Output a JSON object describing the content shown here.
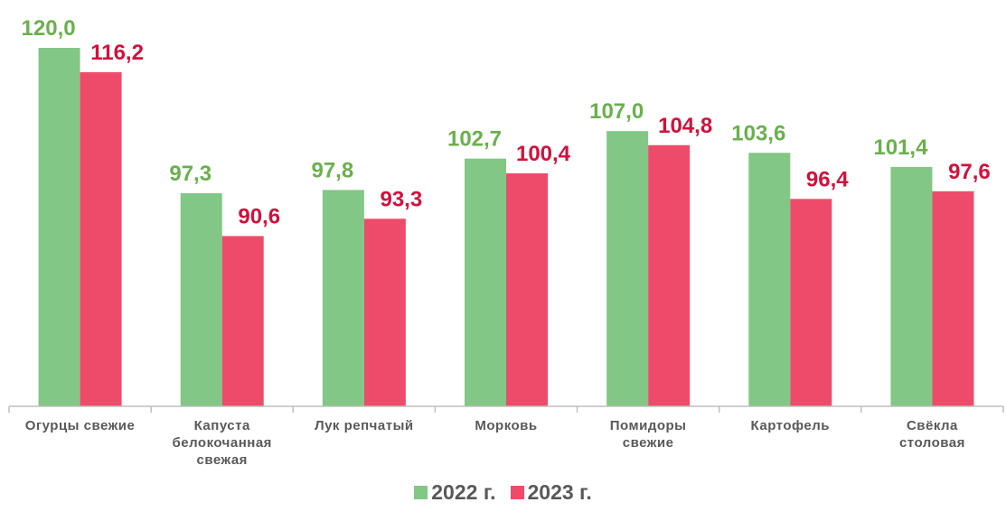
{
  "chart_data": {
    "type": "bar",
    "categories": [
      "Огурцы свежие",
      "Капуста\nбелокочанная\nсвежая",
      "Лук репчатый",
      "Морковь",
      "Помидоры\nсвежие",
      "Картофель",
      "Свёкла\nстоловая"
    ],
    "series": [
      {
        "name": "2022 г.",
        "color": "#82c785",
        "label_color": "#6ab04c",
        "values": [
          120.0,
          97.3,
          97.8,
          102.7,
          107.0,
          103.6,
          101.4
        ],
        "value_labels": [
          "120,0",
          "97,3",
          "97,8",
          "102,7",
          "107,0",
          "103,6",
          "101,4"
        ]
      },
      {
        "name": "2023 г.",
        "color": "#ee4b6a",
        "label_color": "#d2103c",
        "values": [
          116.2,
          90.6,
          93.3,
          100.4,
          104.8,
          96.4,
          97.6
        ],
        "value_labels": [
          "116,2",
          "90,6",
          "93,3",
          "100,4",
          "104,8",
          "96,4",
          "97,6"
        ]
      }
    ],
    "ylim": [
      64,
      120
    ],
    "legend": "bottom"
  }
}
